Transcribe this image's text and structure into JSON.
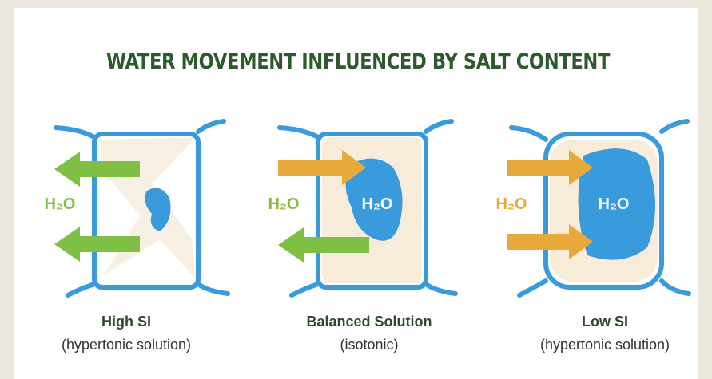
{
  "title": "WATER MOVEMENT INFLUENCED BY SALT CONTENT",
  "panels": [
    {
      "outside_label": "H₂O",
      "label": "High SI",
      "note": "(hypertonic solution)"
    },
    {
      "outside_label": "H₂O",
      "inside_label": "H₂O",
      "label": "Balanced Solution",
      "note": "(isotonic)"
    },
    {
      "outside_label": "H₂O",
      "inside_label": "H₂O",
      "label": "Low SI",
      "note": "(hypertonic solution)"
    }
  ]
}
